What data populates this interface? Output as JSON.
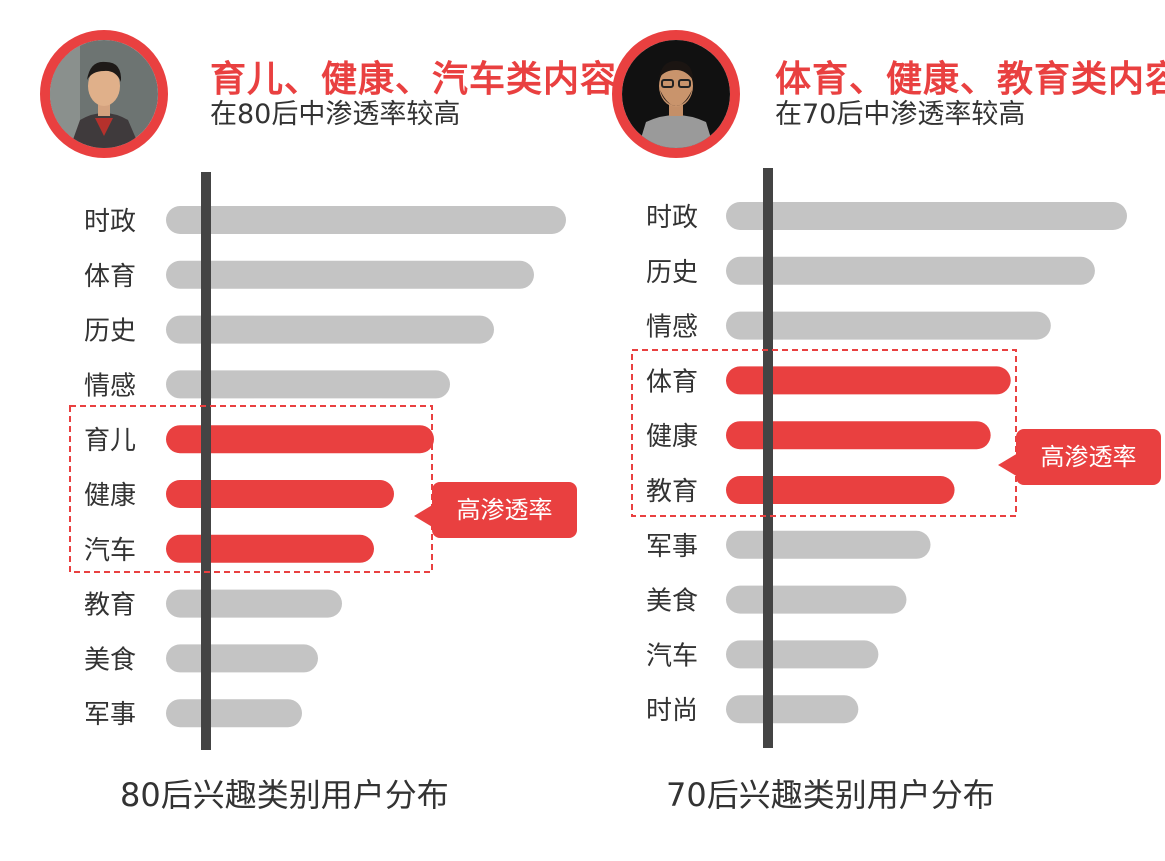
{
  "colors": {
    "accent": "#e94040",
    "bar_gray": "#c4c4c4",
    "axis": "#444444"
  },
  "panels": [
    {
      "headline": "育儿、健康、汽车类内容",
      "subline": "在80后中渗透率较高",
      "caption": "80后兴趣类别用户分布",
      "callout": "高渗透率",
      "avatar_icon": "young-man-portrait"
    },
    {
      "headline": "体育、健康、教育类内容",
      "subline": "在70后中渗透率较高",
      "caption": "70后兴趣类别用户分布",
      "callout": "高渗透率",
      "avatar_icon": "bearded-man-portrait"
    }
  ],
  "chart_data": [
    {
      "type": "bar",
      "orientation": "horizontal",
      "title": "80后兴趣类别用户分布",
      "categories": [
        "时政",
        "体育",
        "历史",
        "情感",
        "育儿",
        "健康",
        "汽车",
        "教育",
        "美食",
        "军事"
      ],
      "values": [
        100,
        92,
        82,
        71,
        67,
        57,
        52,
        44,
        38,
        34
      ],
      "highlighted": [
        "育儿",
        "健康",
        "汽车"
      ],
      "value_axis_labels": false
    },
    {
      "type": "bar",
      "orientation": "horizontal",
      "title": "70后兴趣类别用户分布",
      "categories": [
        "时政",
        "历史",
        "情感",
        "体育",
        "健康",
        "教育",
        "军事",
        "美食",
        "汽车",
        "时尚"
      ],
      "values": [
        100,
        92,
        81,
        71,
        66,
        57,
        51,
        45,
        38,
        33
      ],
      "highlighted": [
        "体育",
        "健康",
        "教育"
      ],
      "value_axis_labels": false
    }
  ]
}
